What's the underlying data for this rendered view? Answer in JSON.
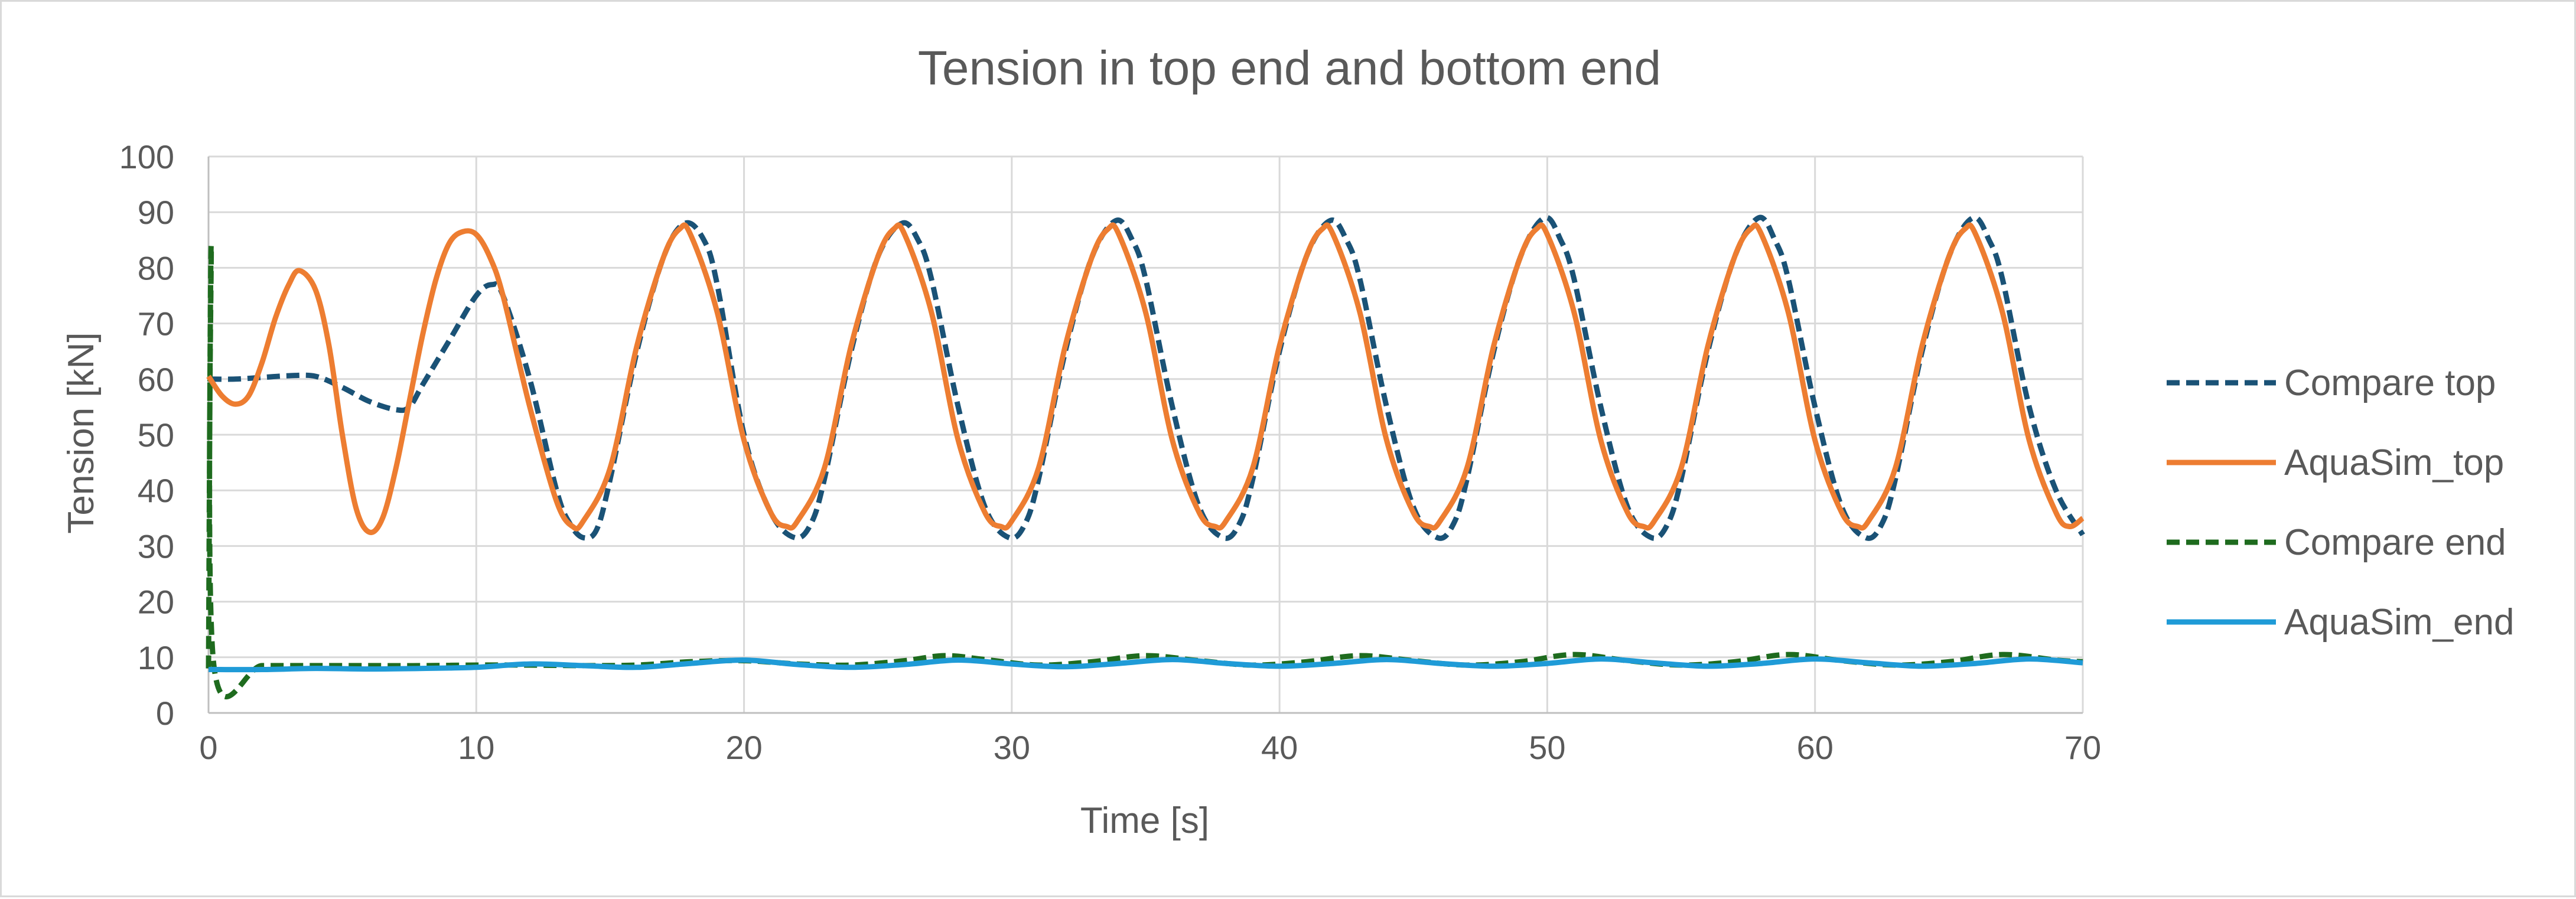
{
  "chart_data": {
    "type": "line",
    "title": "Tension in top end and bottom end",
    "xlabel": "Time [s]",
    "ylabel": "Tension [kN]",
    "xlim": [
      0,
      70
    ],
    "ylim": [
      0,
      100
    ],
    "x_ticks": [
      0,
      10,
      20,
      30,
      40,
      50,
      60,
      70
    ],
    "y_ticks": [
      0,
      10,
      20,
      30,
      40,
      50,
      60,
      70,
      80,
      90,
      100
    ],
    "grid": true,
    "legend_position": "right",
    "series": [
      {
        "name": "Compare top",
        "color": "#1a5276",
        "style": "dashed",
        "points": [
          [
            0,
            60
          ],
          [
            1,
            60
          ],
          [
            2,
            60.3
          ],
          [
            3,
            60.6
          ],
          [
            4,
            60.5
          ],
          [
            5,
            58.5
          ],
          [
            6,
            56
          ],
          [
            7,
            54.5
          ],
          [
            7.5,
            55
          ],
          [
            8,
            59
          ],
          [
            9,
            67
          ],
          [
            10,
            75
          ],
          [
            10.6,
            77
          ],
          [
            11,
            75
          ],
          [
            12,
            60
          ],
          [
            13,
            40
          ],
          [
            13.5,
            34
          ],
          [
            14,
            31.5
          ],
          [
            14.5,
            33
          ],
          [
            15,
            42
          ],
          [
            16,
            65
          ],
          [
            17,
            82
          ],
          [
            17.8,
            88
          ],
          [
            18.5,
            85
          ],
          [
            19,
            77
          ],
          [
            20,
            50
          ],
          [
            21,
            36
          ],
          [
            21.9,
            31.5
          ],
          [
            22.5,
            34
          ],
          [
            23,
            42
          ],
          [
            24,
            65
          ],
          [
            25,
            82
          ],
          [
            25.9,
            88
          ],
          [
            26.5,
            85
          ],
          [
            27,
            78
          ],
          [
            28,
            55
          ],
          [
            29,
            37
          ],
          [
            29.9,
            31.5
          ],
          [
            30.5,
            34
          ],
          [
            31,
            42
          ],
          [
            32,
            65
          ],
          [
            33,
            82
          ],
          [
            33.9,
            88.5
          ],
          [
            34.5,
            85
          ],
          [
            35,
            78
          ],
          [
            36,
            55
          ],
          [
            37,
            37
          ],
          [
            37.9,
            31.5
          ],
          [
            38.5,
            34
          ],
          [
            39,
            42
          ],
          [
            40,
            65
          ],
          [
            41,
            82
          ],
          [
            41.9,
            88.5
          ],
          [
            42.5,
            85
          ],
          [
            43,
            78
          ],
          [
            44,
            55
          ],
          [
            45,
            37
          ],
          [
            45.9,
            31.5
          ],
          [
            46.5,
            34
          ],
          [
            47,
            42
          ],
          [
            48,
            65
          ],
          [
            49,
            82
          ],
          [
            49.9,
            89
          ],
          [
            50.5,
            85
          ],
          [
            51,
            78
          ],
          [
            52,
            55
          ],
          [
            53,
            37
          ],
          [
            53.9,
            31.5
          ],
          [
            54.5,
            34
          ],
          [
            55,
            42
          ],
          [
            56,
            65
          ],
          [
            57,
            82
          ],
          [
            57.9,
            89
          ],
          [
            58.5,
            85
          ],
          [
            59,
            78
          ],
          [
            60,
            55
          ],
          [
            61,
            37
          ],
          [
            61.9,
            31.5
          ],
          [
            62.5,
            34
          ],
          [
            63,
            42
          ],
          [
            64,
            65
          ],
          [
            65,
            82
          ],
          [
            65.9,
            89
          ],
          [
            66.5,
            85
          ],
          [
            67,
            78
          ],
          [
            68,
            55
          ],
          [
            69,
            40
          ],
          [
            70,
            32
          ]
        ]
      },
      {
        "name": "AquaSim_top",
        "color": "#ed7d31",
        "style": "solid",
        "points": [
          [
            0,
            60.5
          ],
          [
            0.5,
            57
          ],
          [
            1,
            55.5
          ],
          [
            1.5,
            57
          ],
          [
            2,
            63
          ],
          [
            2.5,
            71
          ],
          [
            3,
            77
          ],
          [
            3.4,
            79.5
          ],
          [
            4,
            76
          ],
          [
            4.5,
            66
          ],
          [
            5,
            50
          ],
          [
            5.5,
            37
          ],
          [
            6,
            32.5
          ],
          [
            6.5,
            35
          ],
          [
            7,
            44
          ],
          [
            7.5,
            56
          ],
          [
            8,
            68
          ],
          [
            8.5,
            78
          ],
          [
            9,
            84.5
          ],
          [
            9.5,
            86.5
          ],
          [
            10,
            86
          ],
          [
            10.5,
            82
          ],
          [
            11,
            75
          ],
          [
            12,
            55
          ],
          [
            13,
            38
          ],
          [
            13.6,
            33.5
          ],
          [
            14,
            34.5
          ],
          [
            15,
            44
          ],
          [
            16,
            66
          ],
          [
            17,
            82
          ],
          [
            17.6,
            87
          ],
          [
            18,
            86
          ],
          [
            19,
            72
          ],
          [
            20,
            49
          ],
          [
            21,
            36
          ],
          [
            21.6,
            33.5
          ],
          [
            22,
            34.5
          ],
          [
            23,
            44
          ],
          [
            24,
            66
          ],
          [
            25,
            82
          ],
          [
            25.6,
            87
          ],
          [
            26,
            86
          ],
          [
            27,
            72
          ],
          [
            28,
            49
          ],
          [
            29,
            36
          ],
          [
            29.6,
            33.5
          ],
          [
            30,
            34.5
          ],
          [
            31,
            44
          ],
          [
            32,
            66
          ],
          [
            33,
            82
          ],
          [
            33.6,
            87
          ],
          [
            34,
            86
          ],
          [
            35,
            72
          ],
          [
            36,
            49
          ],
          [
            37,
            36
          ],
          [
            37.6,
            33.5
          ],
          [
            38,
            34.5
          ],
          [
            39,
            44
          ],
          [
            40,
            66
          ],
          [
            41,
            82
          ],
          [
            41.6,
            87
          ],
          [
            42,
            86
          ],
          [
            43,
            72
          ],
          [
            44,
            49
          ],
          [
            45,
            36
          ],
          [
            45.6,
            33.5
          ],
          [
            46,
            34.5
          ],
          [
            47,
            44
          ],
          [
            48,
            66
          ],
          [
            49,
            82
          ],
          [
            49.6,
            87
          ],
          [
            50,
            86
          ],
          [
            51,
            72
          ],
          [
            52,
            49
          ],
          [
            53,
            36
          ],
          [
            53.6,
            33.5
          ],
          [
            54,
            34.5
          ],
          [
            55,
            44
          ],
          [
            56,
            66
          ],
          [
            57,
            82
          ],
          [
            57.6,
            87
          ],
          [
            58,
            86
          ],
          [
            59,
            72
          ],
          [
            60,
            49
          ],
          [
            61,
            36
          ],
          [
            61.6,
            33.5
          ],
          [
            62,
            34.5
          ],
          [
            63,
            44
          ],
          [
            64,
            66
          ],
          [
            65,
            82
          ],
          [
            65.6,
            87
          ],
          [
            66,
            86
          ],
          [
            67,
            72
          ],
          [
            68,
            49
          ],
          [
            69,
            36
          ],
          [
            69.5,
            33.5
          ],
          [
            70,
            35
          ]
        ]
      },
      {
        "name": "Compare end",
        "color": "#1e6b1e",
        "style": "dashed",
        "points": [
          [
            0,
            8
          ],
          [
            0.1,
            84
          ],
          [
            0.2,
            8.5
          ],
          [
            2,
            8.5
          ],
          [
            4,
            8.5
          ],
          [
            6,
            8.5
          ],
          [
            8,
            8.5
          ],
          [
            10,
            8.6
          ],
          [
            12,
            8.6
          ],
          [
            14,
            8.5
          ],
          [
            16,
            8.6
          ],
          [
            18,
            9.2
          ],
          [
            20,
            9.4
          ],
          [
            22,
            8.8
          ],
          [
            24,
            8.6
          ],
          [
            26,
            9.4
          ],
          [
            27.5,
            10.3
          ],
          [
            29,
            9.6
          ],
          [
            31,
            8.6
          ],
          [
            33,
            9.2
          ],
          [
            35,
            10.3
          ],
          [
            37,
            9.4
          ],
          [
            39,
            8.6
          ],
          [
            41,
            9.2
          ],
          [
            43,
            10.3
          ],
          [
            45,
            9.4
          ],
          [
            47,
            8.6
          ],
          [
            49,
            9.2
          ],
          [
            51,
            10.5
          ],
          [
            53,
            9.4
          ],
          [
            55,
            8.6
          ],
          [
            57,
            9.2
          ],
          [
            59,
            10.5
          ],
          [
            61,
            9.4
          ],
          [
            63,
            8.6
          ],
          [
            65,
            9.2
          ],
          [
            67,
            10.5
          ],
          [
            69,
            9.5
          ],
          [
            70,
            9.2
          ]
        ]
      },
      {
        "name": "AquaSim_end",
        "color": "#1f9bd7",
        "style": "solid",
        "points": [
          [
            0,
            7.8
          ],
          [
            2,
            7.8
          ],
          [
            4,
            8
          ],
          [
            6,
            7.9
          ],
          [
            8,
            8
          ],
          [
            10,
            8.2
          ],
          [
            12,
            8.8
          ],
          [
            14,
            8.5
          ],
          [
            16,
            8.2
          ],
          [
            18,
            8.9
          ],
          [
            20,
            9.5
          ],
          [
            22,
            8.7
          ],
          [
            24,
            8.2
          ],
          [
            26,
            8.7
          ],
          [
            28,
            9.5
          ],
          [
            30,
            8.8
          ],
          [
            32,
            8.3
          ],
          [
            34,
            8.9
          ],
          [
            36,
            9.6
          ],
          [
            38,
            8.9
          ],
          [
            40,
            8.4
          ],
          [
            42,
            8.9
          ],
          [
            44,
            9.6
          ],
          [
            46,
            8.9
          ],
          [
            48,
            8.4
          ],
          [
            50,
            8.9
          ],
          [
            52,
            9.7
          ],
          [
            54,
            9
          ],
          [
            56,
            8.4
          ],
          [
            58,
            8.9
          ],
          [
            60,
            9.7
          ],
          [
            62,
            9
          ],
          [
            64,
            8.4
          ],
          [
            66,
            8.9
          ],
          [
            68,
            9.7
          ],
          [
            70,
            9
          ]
        ]
      }
    ]
  }
}
